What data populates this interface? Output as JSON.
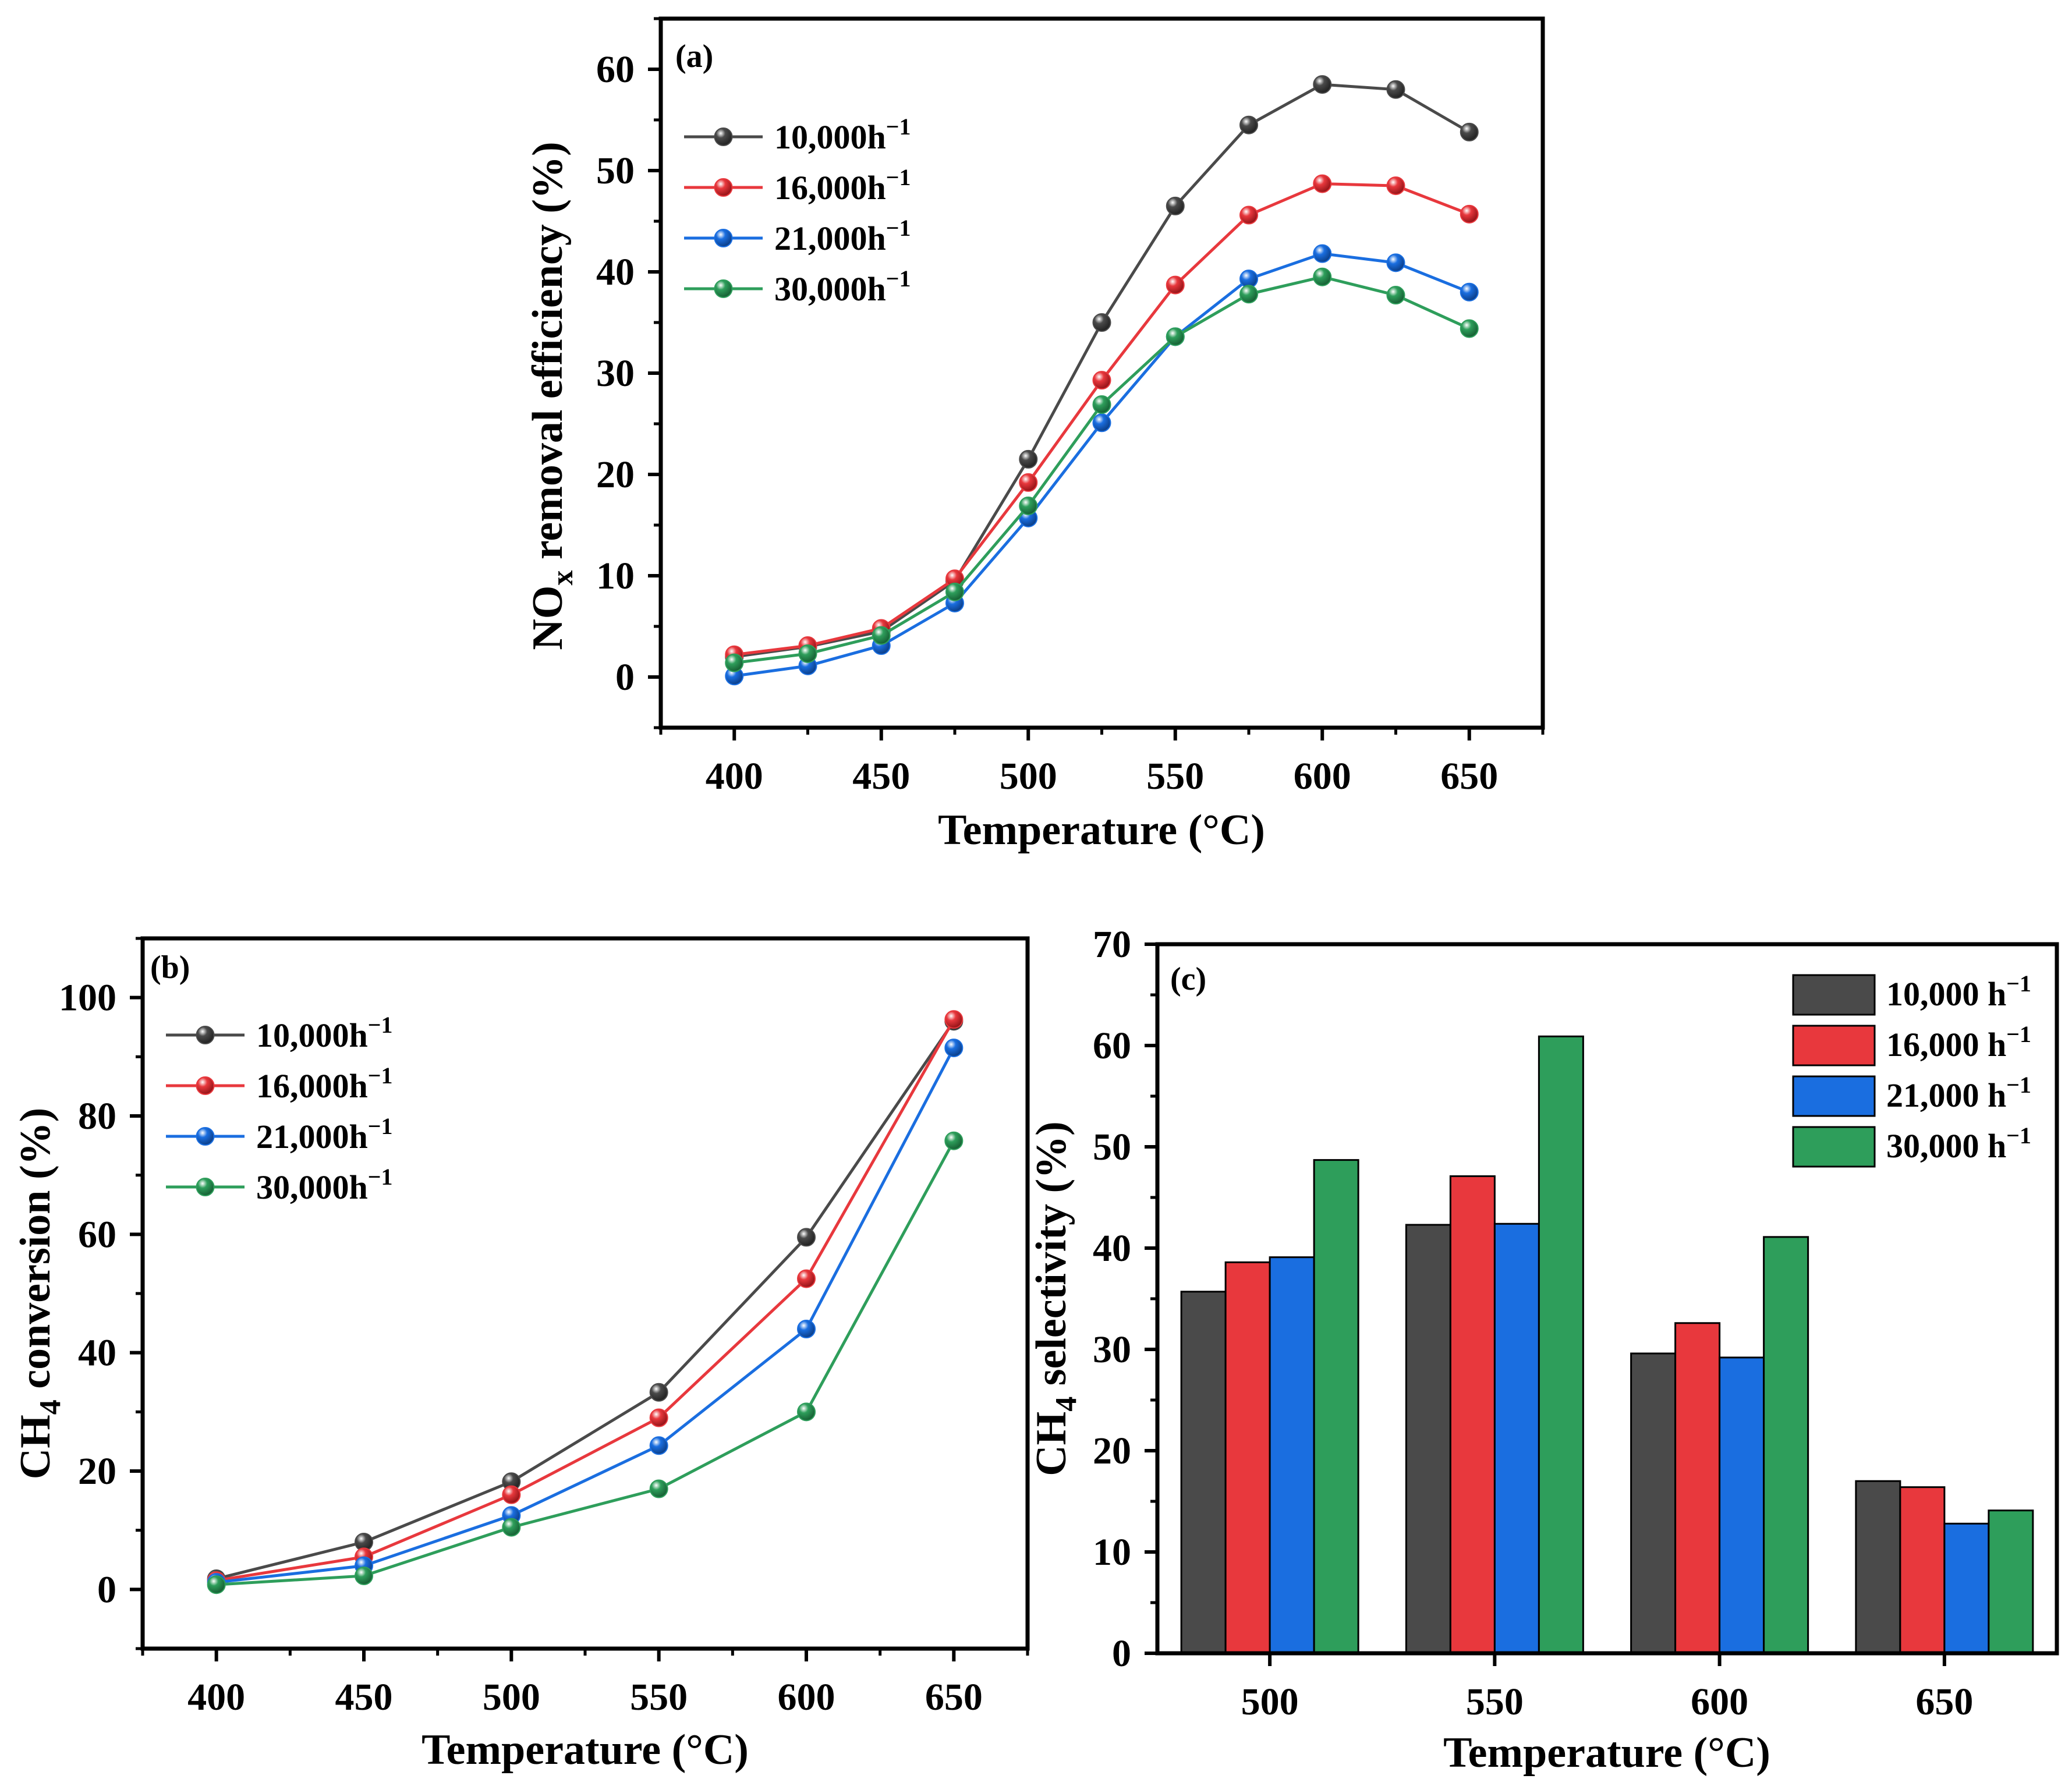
{
  "figure": {
    "description_label": "Three-panel figure: NOx removal, CH4 conversion, CH4 selectivity"
  },
  "panel_a": {
    "label": "(a)",
    "ylabel_main": "NO",
    "ylabel_sub": "x",
    "ylabel_rest": " removal efficiency (%)",
    "xlabel": "Temperature (°C)"
  },
  "panel_b": {
    "label": "(b)",
    "ylabel_main": "CH",
    "ylabel_sub": "4",
    "ylabel_rest": " conversion (%)",
    "xlabel": "Temperature (°C)"
  },
  "panel_c": {
    "label": "(c)",
    "ylabel_main": "CH",
    "ylabel_sub": "4",
    "ylabel_rest": " selectivity (%)",
    "xlabel": "Temperature (°C)"
  },
  "colors": {
    "s1": "#4a4a4a",
    "s2": "#e8383d",
    "s3": "#1a6ee0",
    "s4": "#2e9e5b"
  },
  "chart_data": [
    {
      "id": "a",
      "type": "line",
      "title": "(a)",
      "xlabel": "Temperature (°C)",
      "ylabel": "NOx removal efficiency (%)",
      "xlim": [
        375,
        675
      ],
      "ylim": [
        -5,
        65
      ],
      "xticks": [
        400,
        450,
        500,
        550,
        600,
        650
      ],
      "yticks": [
        0,
        10,
        20,
        30,
        40,
        50,
        60
      ],
      "x": [
        400,
        425,
        450,
        475,
        500,
        525,
        550,
        575,
        600,
        625,
        650
      ],
      "series": [
        {
          "name": "10,000h",
          "sup": "−1",
          "color": "#4a4a4a",
          "values": [
            2.0,
            3.0,
            4.5,
            9.5,
            21.5,
            35.0,
            46.5,
            54.5,
            58.5,
            58.0,
            53.8
          ]
        },
        {
          "name": "16,000h",
          "sup": "−1",
          "color": "#e8383d",
          "values": [
            2.2,
            3.1,
            4.8,
            9.7,
            19.2,
            29.3,
            38.7,
            45.6,
            48.7,
            48.5,
            45.7
          ]
        },
        {
          "name": "21,000h",
          "sup": "−1",
          "color": "#1a6ee0",
          "values": [
            0.1,
            1.1,
            3.1,
            7.3,
            15.7,
            25.1,
            33.6,
            39.3,
            41.8,
            40.9,
            38.0
          ]
        },
        {
          "name": "30,000h",
          "sup": "−1",
          "color": "#2e9e5b",
          "values": [
            1.4,
            2.3,
            4.1,
            8.4,
            16.9,
            26.9,
            33.6,
            37.8,
            39.5,
            37.7,
            34.4
          ]
        }
      ]
    },
    {
      "id": "b",
      "type": "line",
      "title": "(b)",
      "xlabel": "Temperature (°C)",
      "ylabel": "CH4 conversion (%)",
      "xlim": [
        375,
        675
      ],
      "ylim": [
        -10,
        110
      ],
      "xticks": [
        400,
        450,
        500,
        550,
        600,
        650
      ],
      "yticks": [
        0,
        20,
        40,
        60,
        80,
        100
      ],
      "x": [
        400,
        450,
        500,
        550,
        600,
        650
      ],
      "series": [
        {
          "name": "10,000h",
          "sup": "−1",
          "color": "#4a4a4a",
          "values": [
            1.8,
            8.0,
            18.2,
            33.3,
            59.5,
            96.0
          ]
        },
        {
          "name": "16,000h",
          "sup": "−1",
          "color": "#e8383d",
          "values": [
            1.5,
            5.5,
            16.0,
            29.0,
            52.5,
            96.3
          ]
        },
        {
          "name": "21,000h",
          "sup": "−1",
          "color": "#1a6ee0",
          "values": [
            1.2,
            4.0,
            12.5,
            24.3,
            44.0,
            91.5
          ]
        },
        {
          "name": "30,000h",
          "sup": "−1",
          "color": "#2e9e5b",
          "values": [
            0.8,
            2.3,
            10.5,
            17.0,
            30.0,
            75.8
          ]
        }
      ]
    },
    {
      "id": "c",
      "type": "bar",
      "title": "(c)",
      "xlabel": "Temperature (°C)",
      "ylabel": "CH4 selectivity (%)",
      "ylim": [
        0,
        70
      ],
      "yticks": [
        0,
        10,
        20,
        30,
        40,
        50,
        60,
        70
      ],
      "categories": [
        "500",
        "550",
        "600",
        "650"
      ],
      "series": [
        {
          "name": "10,000 h",
          "sup": "−1",
          "color": "#4a4a4a",
          "values": [
            35.7,
            42.3,
            29.6,
            17.0
          ]
        },
        {
          "name": "16,000 h",
          "sup": "−1",
          "color": "#e8383d",
          "values": [
            38.6,
            47.1,
            32.6,
            16.4
          ]
        },
        {
          "name": "21,000 h",
          "sup": "−1",
          "color": "#1a6ee0",
          "values": [
            39.1,
            42.4,
            29.2,
            12.8
          ]
        },
        {
          "name": "30,000 h",
          "sup": "−1",
          "color": "#2e9e5b",
          "values": [
            48.7,
            60.9,
            41.1,
            14.1
          ]
        }
      ]
    }
  ]
}
